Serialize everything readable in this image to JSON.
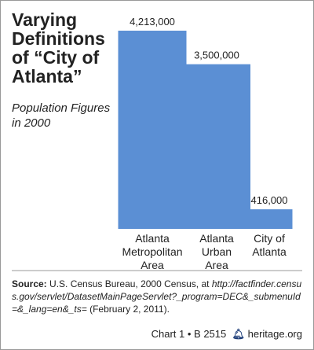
{
  "chart_data": {
    "type": "bar",
    "title": "Varying\nDefinitions\nof “City of\nAtlanta”",
    "subtitle": "Population Figures\nin 2000",
    "categories": [
      "Atlanta\nMetropolitan\nArea",
      "Atlanta\nUrban\nArea",
      "City of\nAtlanta"
    ],
    "values": [
      4213000,
      3500000,
      416000
    ],
    "value_labels": [
      "4,213,000",
      "3,500,000",
      "416,000"
    ],
    "color": "#5b8fd4",
    "source_label": "Source:",
    "source_text": "U.S. Census Bureau, 2000 Census, at",
    "source_url": "http://factfinder.census.gov/servlet/DatasetMainPageServlet?_program=DEC&_submenuId=&_lang=en&_ts=",
    "source_date": "(February 2, 2011).",
    "chart_id": "Chart 1 • B 2515",
    "site": "heritage.org"
  }
}
